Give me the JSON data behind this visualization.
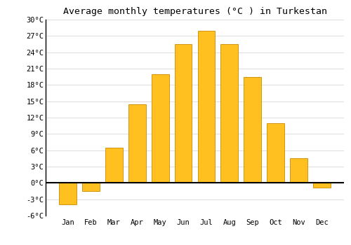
{
  "title": "Average monthly temperatures (°C ) in Turkestan",
  "months": [
    "Jan",
    "Feb",
    "Mar",
    "Apr",
    "May",
    "Jun",
    "Jul",
    "Aug",
    "Sep",
    "Oct",
    "Nov",
    "Dec"
  ],
  "values": [
    -4.0,
    -1.5,
    6.5,
    14.5,
    20.0,
    25.5,
    28.0,
    25.5,
    19.5,
    11.0,
    4.5,
    -0.8
  ],
  "bar_color": "#FFC020",
  "bar_edge_color": "#CC8800",
  "ylim": [
    -6,
    30
  ],
  "yticks": [
    -6,
    -3,
    0,
    3,
    6,
    9,
    12,
    15,
    18,
    21,
    24,
    27,
    30
  ],
  "ytick_labels": [
    "-6°C",
    "-3°C",
    "0°C",
    "3°C",
    "6°C",
    "9°C",
    "12°C",
    "15°C",
    "18°C",
    "21°C",
    "24°C",
    "27°C",
    "30°C"
  ],
  "grid_color": "#dddddd",
  "background_color": "#ffffff",
  "title_fontsize": 9.5,
  "tick_fontsize": 7.5,
  "bar_width": 0.75
}
